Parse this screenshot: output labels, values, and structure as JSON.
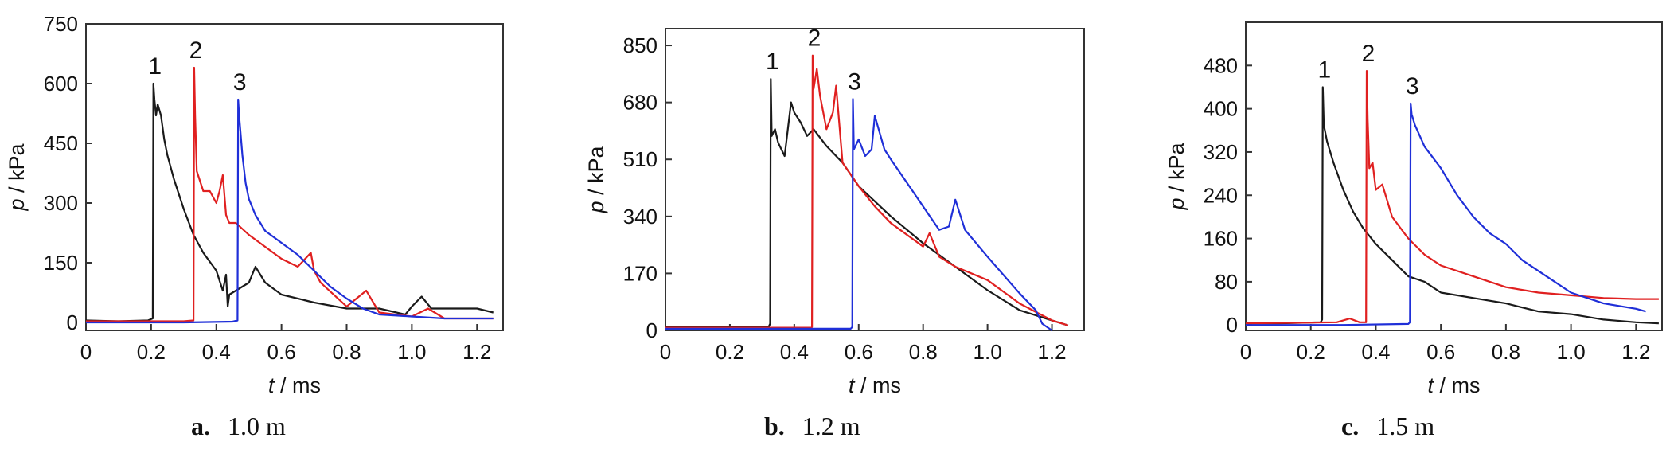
{
  "chart_data": [
    {
      "type": "line",
      "caption_letter": "a.",
      "caption_text": "1.0 m",
      "xlabel_var": "t",
      "xlabel_unit": " / ms",
      "ylabel_var": "p",
      "ylabel_unit": " / kPa",
      "xlim": [
        0,
        1.28
      ],
      "ylim": [
        -20,
        750
      ],
      "xticks": [
        0,
        0.2,
        0.4,
        0.6,
        0.8,
        1.0,
        1.2
      ],
      "xtick_labels": [
        "0",
        "0.2",
        "0.4",
        "0.6",
        "0.8",
        "1.0",
        "1.2"
      ],
      "yticks": [
        0,
        150,
        300,
        450,
        600,
        750
      ],
      "ytick_labels": [
        "0",
        "150",
        "300",
        "450",
        "600",
        "750"
      ],
      "series": [
        {
          "label": "1",
          "color": "#1a1a1a",
          "x": [
            0,
            0.1,
            0.19,
            0.205,
            0.207,
            0.21,
            0.215,
            0.22,
            0.23,
            0.24,
            0.25,
            0.27,
            0.3,
            0.33,
            0.36,
            0.4,
            0.42,
            0.43,
            0.435,
            0.44,
            0.46,
            0.5,
            0.52,
            0.55,
            0.6,
            0.7,
            0.8,
            0.9,
            0.98,
            1.0,
            1.03,
            1.06,
            1.1,
            1.15,
            1.2,
            1.25
          ],
          "y": [
            5,
            3,
            5,
            10,
            600,
            560,
            520,
            548,
            520,
            460,
            420,
            360,
            285,
            220,
            175,
            130,
            80,
            120,
            40,
            70,
            80,
            100,
            140,
            100,
            70,
            50,
            35,
            35,
            20,
            40,
            65,
            35,
            35,
            35,
            35,
            25
          ]
        },
        {
          "label": "2",
          "color": "#e02020",
          "x": [
            0,
            0.2,
            0.3,
            0.33,
            0.332,
            0.335,
            0.34,
            0.36,
            0.38,
            0.4,
            0.41,
            0.42,
            0.43,
            0.44,
            0.46,
            0.5,
            0.55,
            0.6,
            0.65,
            0.69,
            0.7,
            0.72,
            0.8,
            0.86,
            0.9,
            1.0,
            1.05,
            1.1,
            1.2,
            1.25
          ],
          "y": [
            3,
            3,
            3,
            5,
            640,
            520,
            380,
            330,
            330,
            300,
            330,
            370,
            270,
            250,
            250,
            220,
            190,
            160,
            140,
            175,
            130,
            100,
            40,
            80,
            25,
            15,
            35,
            10,
            10,
            10
          ]
        },
        {
          "label": "3",
          "color": "#1f2fd8",
          "x": [
            0,
            0.3,
            0.45,
            0.465,
            0.467,
            0.47,
            0.48,
            0.49,
            0.5,
            0.52,
            0.55,
            0.6,
            0.65,
            0.7,
            0.75,
            0.8,
            0.85,
            0.9,
            1.0,
            1.1,
            1.2,
            1.25
          ],
          "y": [
            0,
            0,
            2,
            5,
            560,
            520,
            420,
            350,
            310,
            270,
            230,
            200,
            170,
            130,
            90,
            60,
            35,
            20,
            15,
            10,
            10,
            10
          ]
        }
      ]
    },
    {
      "type": "line",
      "caption_letter": "b.",
      "caption_text": "1.2 m",
      "xlabel_var": "t",
      "xlabel_unit": " / ms",
      "ylabel_var": "p",
      "ylabel_unit": " / kPa",
      "xlim": [
        0,
        1.3
      ],
      "ylim": [
        0,
        900
      ],
      "xticks": [
        0,
        0.2,
        0.4,
        0.6,
        0.8,
        1.0,
        1.2
      ],
      "xtick_labels": [
        "0",
        "0.2",
        "0.4",
        "0.6",
        "0.8",
        "1.0",
        "1.2"
      ],
      "yticks": [
        0,
        170,
        340,
        510,
        680,
        850
      ],
      "ytick_labels": [
        "0",
        "170",
        "340",
        "510",
        "680",
        "850"
      ],
      "series": [
        {
          "label": "1",
          "color": "#1a1a1a",
          "x": [
            0,
            0.2,
            0.32,
            0.325,
            0.327,
            0.33,
            0.34,
            0.35,
            0.37,
            0.39,
            0.4,
            0.42,
            0.44,
            0.46,
            0.5,
            0.55,
            0.6,
            0.7,
            0.8,
            0.9,
            1.0,
            1.1,
            1.2,
            1.25
          ],
          "y": [
            10,
            10,
            10,
            20,
            750,
            580,
            600,
            560,
            520,
            680,
            650,
            620,
            580,
            600,
            550,
            500,
            430,
            340,
            260,
            190,
            120,
            60,
            30,
            15
          ]
        },
        {
          "label": "2",
          "color": "#e02020",
          "x": [
            0,
            0.3,
            0.45,
            0.455,
            0.457,
            0.46,
            0.47,
            0.48,
            0.5,
            0.52,
            0.53,
            0.55,
            0.6,
            0.65,
            0.7,
            0.8,
            0.82,
            0.85,
            0.9,
            1.0,
            1.1,
            1.2,
            1.25
          ],
          "y": [
            8,
            8,
            8,
            10,
            820,
            720,
            780,
            700,
            600,
            650,
            730,
            500,
            430,
            370,
            320,
            250,
            290,
            220,
            190,
            150,
            80,
            30,
            15
          ]
        },
        {
          "label": "3",
          "color": "#1f2fd8",
          "x": [
            0,
            0.3,
            0.575,
            0.58,
            0.582,
            0.585,
            0.6,
            0.62,
            0.64,
            0.65,
            0.68,
            0.7,
            0.75,
            0.8,
            0.85,
            0.88,
            0.9,
            0.93,
            1.0,
            1.1,
            1.15,
            1.17,
            1.2
          ],
          "y": [
            5,
            5,
            5,
            10,
            690,
            540,
            570,
            520,
            540,
            640,
            540,
            510,
            440,
            370,
            300,
            310,
            390,
            300,
            220,
            110,
            60,
            20,
            0
          ]
        }
      ]
    },
    {
      "type": "line",
      "caption_letter": "c.",
      "caption_text": "1.5 m",
      "xlabel_var": "t",
      "xlabel_unit": " / ms",
      "ylabel_var": "p",
      "ylabel_unit": " / kPa",
      "xlim": [
        0,
        1.28
      ],
      "ylim": [
        -10,
        560
      ],
      "xticks": [
        0,
        0.2,
        0.4,
        0.6,
        0.8,
        1.0,
        1.2
      ],
      "xtick_labels": [
        "0",
        "0.2",
        "0.4",
        "0.6",
        "0.8",
        "1.0",
        "1.2"
      ],
      "yticks": [
        0,
        80,
        160,
        240,
        320,
        400,
        480
      ],
      "ytick_labels": [
        "0",
        "80",
        "160",
        "240",
        "320",
        "400",
        "480"
      ],
      "series": [
        {
          "label": "1",
          "color": "#1a1a1a",
          "x": [
            0,
            0.1,
            0.23,
            0.235,
            0.237,
            0.24,
            0.25,
            0.27,
            0.3,
            0.33,
            0.36,
            0.4,
            0.45,
            0.5,
            0.55,
            0.6,
            0.7,
            0.8,
            0.9,
            1.0,
            1.1,
            1.2,
            1.27
          ],
          "y": [
            3,
            3,
            5,
            10,
            440,
            370,
            340,
            300,
            250,
            210,
            180,
            150,
            120,
            90,
            80,
            60,
            50,
            40,
            25,
            20,
            10,
            5,
            3
          ]
        },
        {
          "label": "2",
          "color": "#e02020",
          "x": [
            0,
            0.28,
            0.32,
            0.35,
            0.37,
            0.372,
            0.375,
            0.38,
            0.39,
            0.4,
            0.42,
            0.45,
            0.5,
            0.55,
            0.6,
            0.7,
            0.8,
            0.9,
            1.0,
            1.1,
            1.2,
            1.27
          ],
          "y": [
            3,
            5,
            12,
            5,
            5,
            470,
            380,
            290,
            300,
            250,
            260,
            200,
            160,
            130,
            110,
            90,
            70,
            60,
            55,
            50,
            48,
            48
          ]
        },
        {
          "label": "3",
          "color": "#1f2fd8",
          "x": [
            0,
            0.3,
            0.5,
            0.505,
            0.507,
            0.51,
            0.52,
            0.55,
            0.6,
            0.65,
            0.7,
            0.75,
            0.8,
            0.85,
            0.9,
            0.95,
            1.0,
            1.1,
            1.2,
            1.23
          ],
          "y": [
            0,
            0,
            2,
            5,
            410,
            390,
            370,
            330,
            290,
            240,
            200,
            170,
            150,
            120,
            100,
            80,
            60,
            40,
            30,
            25
          ]
        }
      ]
    }
  ]
}
